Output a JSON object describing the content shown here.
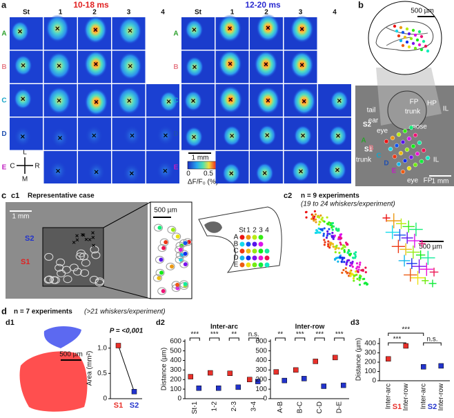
{
  "panel_a": {
    "label": "a",
    "left_title": "10-18 ms",
    "right_title": "12-20 ms",
    "columns": [
      "St",
      "1",
      "2",
      "3",
      "4"
    ],
    "rows": [
      "A",
      "B",
      "C",
      "D",
      "E"
    ],
    "scale_bar": "1 mm",
    "colorbar_ticks": [
      0,
      0.5
    ],
    "colorbar_label": "ΔF/F₀ (%)",
    "orientation": [
      "L",
      "C",
      "R",
      "M"
    ]
  },
  "panel_b": {
    "label": "b",
    "inset_scale": "500 µm",
    "labels": [
      "FP",
      "HP",
      "IL",
      "tail",
      "trunk",
      "ear",
      "nose",
      "eye",
      "S2",
      "S1",
      "trunk",
      "IL",
      "eye",
      "FP"
    ],
    "rows": [
      "A",
      "B",
      "C",
      "D",
      "E"
    ],
    "scale_bar": "1 mm"
  },
  "panel_c": {
    "label": "c",
    "c1": {
      "label": "c1",
      "title": "Representative case",
      "scale_bar": "1 mm",
      "zoom_scale": "500 µm",
      "s2": "S2",
      "s1": "S1",
      "schematic_columns": [
        "St",
        "1",
        "2",
        "3",
        "4"
      ],
      "schematic_rows": [
        "A",
        "B",
        "C",
        "D",
        "E"
      ]
    },
    "c2": {
      "label": "c2",
      "title": "n = 9 experiments",
      "subtitle": "(19 to 24 whiskers/experiment)",
      "scale_bar": "500 µm"
    }
  },
  "panel_d": {
    "label": "d",
    "title": "n = 7 experiments",
    "subtitle": "(>21 whiskers/experiment)",
    "d1_scale": "500 µm"
  },
  "chart_data": [
    {
      "type": "dot",
      "label": "d1",
      "title": "P = <0,001",
      "y_label": "Area (mm²)",
      "categories": [
        "S1",
        "S2"
      ],
      "colors": [
        "#e8302a",
        "#2233cc"
      ],
      "values": [
        1.05,
        0.14
      ],
      "ylim": [
        0,
        1.2
      ],
      "yticks": [
        0,
        0.5,
        {
          "value": 1,
          "label": "1.0"
        }
      ]
    },
    {
      "type": "dot",
      "label": "d2",
      "title": "Inter-arc",
      "y_label": "Distance (µm)",
      "categories": [
        "St-1",
        "1-2",
        "2-3",
        "3-4"
      ],
      "series": [
        {
          "color": "#e8302a",
          "values": [
            230,
            270,
            265,
            200
          ]
        },
        {
          "color": "#2233cc",
          "values": [
            110,
            110,
            120,
            180
          ]
        }
      ],
      "significance": [
        "***",
        "***",
        "**",
        "n.s."
      ],
      "ylim": [
        0,
        620
      ],
      "yticks": [
        0,
        100,
        200,
        300,
        400,
        500,
        600
      ]
    },
    {
      "type": "dot",
      "title": "Inter-row",
      "categories": [
        "A-B",
        "B-C",
        "C-D",
        "D-E"
      ],
      "series": [
        {
          "color": "#e8302a",
          "values": [
            280,
            300,
            390,
            430
          ]
        },
        {
          "color": "#2233cc",
          "values": [
            190,
            210,
            130,
            140
          ]
        }
      ],
      "significance": [
        "**",
        "***",
        "***",
        "***"
      ],
      "ylim": [
        0,
        620
      ],
      "yticks": [
        0,
        100,
        200,
        300,
        400,
        500,
        600
      ]
    },
    {
      "type": "dot",
      "label": "d3",
      "y_label": "Distance (µm)",
      "categories": [
        "Inter-arc",
        "Inter-row",
        "Inter-arc",
        "Inter-row"
      ],
      "groups": [
        "S1",
        "S2"
      ],
      "colors": [
        "#e8302a",
        "#e8302a",
        "#2233cc",
        "#2233cc"
      ],
      "values": [
        235,
        375,
        150,
        160
      ],
      "significance": [
        "***",
        "***",
        "n.s."
      ],
      "ylim": [
        0,
        460
      ],
      "yticks": [
        0,
        100,
        200,
        300,
        400
      ]
    }
  ]
}
